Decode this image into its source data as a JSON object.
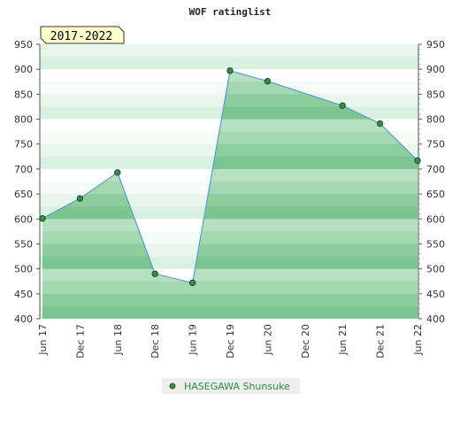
{
  "chart_data": {
    "type": "area",
    "title": "WOF ratinglist",
    "period_label": "2017-2022",
    "x_categories": [
      "Jun 17",
      "Dec 17",
      "Jun 18",
      "Dec 18",
      "Jun 19",
      "Dec 19",
      "Jun 20",
      "Dec 20",
      "Jun 21",
      "Dec 21",
      "Jun 22"
    ],
    "ylim": [
      400,
      950
    ],
    "y_ticks": [
      "950",
      "900",
      "850",
      "800",
      "750",
      "700",
      "650",
      "600",
      "550",
      "500",
      "450",
      "400"
    ],
    "y_axis_sides": "left and right",
    "grid": "horizontal banded stripes",
    "series": [
      {
        "name": "HASEGAWA Shunsuke",
        "points": [
          {
            "x": "Jun 17",
            "y": 601
          },
          {
            "x": "Dec 17",
            "y": 641
          },
          {
            "x": "Jun 18",
            "y": 693
          },
          {
            "x": "Dec 18",
            "y": 490
          },
          {
            "x": "Jun 19",
            "y": 472
          },
          {
            "x": "Dec 19",
            "y": 897
          },
          {
            "x": "Jun 20",
            "y": 876
          },
          {
            "x": "Jun 21",
            "y": 827
          },
          {
            "x": "Dec 21",
            "y": 791
          },
          {
            "x": "Jun 22",
            "y": 717
          }
        ]
      }
    ],
    "legend_position": "bottom-center",
    "colors": {
      "line": "#5b9bd5",
      "area": "#6cbf84",
      "marker": "#3a8a4c",
      "badge_bg": "#ffffcc",
      "badge_border": "#333333",
      "badge_text": "#8b0000",
      "legend_text": "#2e8b3e"
    }
  }
}
